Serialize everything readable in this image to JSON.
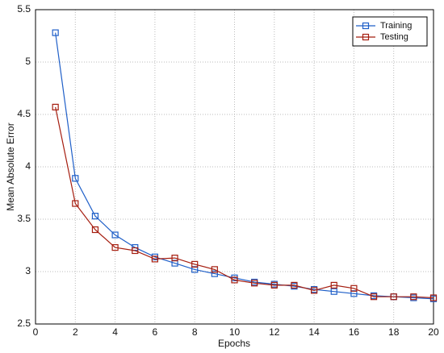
{
  "chart_data": {
    "type": "line",
    "xlabel": "Epochs",
    "ylabel": "Mean Absolute Error",
    "x": [
      1,
      2,
      3,
      4,
      5,
      6,
      7,
      8,
      9,
      10,
      11,
      12,
      13,
      14,
      15,
      16,
      17,
      18,
      19,
      20
    ],
    "series": [
      {
        "name": "Training",
        "color": "#1f5fc8",
        "values": [
          5.28,
          3.89,
          3.53,
          3.35,
          3.23,
          3.14,
          3.08,
          3.02,
          2.98,
          2.94,
          2.9,
          2.88,
          2.86,
          2.83,
          2.81,
          2.79,
          2.77,
          2.76,
          2.75,
          2.74
        ]
      },
      {
        "name": "Testing",
        "color": "#a51d0f",
        "values": [
          4.57,
          3.65,
          3.4,
          3.23,
          3.2,
          3.12,
          3.13,
          3.07,
          3.02,
          2.92,
          2.89,
          2.87,
          2.87,
          2.82,
          2.87,
          2.84,
          2.76,
          2.76,
          2.76,
          2.75
        ]
      }
    ],
    "xlim": [
      0,
      20
    ],
    "xticks": [
      0,
      2,
      4,
      6,
      8,
      10,
      12,
      14,
      16,
      18,
      20
    ],
    "ylim": [
      2.5,
      5.5
    ],
    "yticks": [
      2.5,
      3,
      3.5,
      4,
      4.5,
      5,
      5.5
    ],
    "grid": true,
    "legend": "upper-right"
  }
}
